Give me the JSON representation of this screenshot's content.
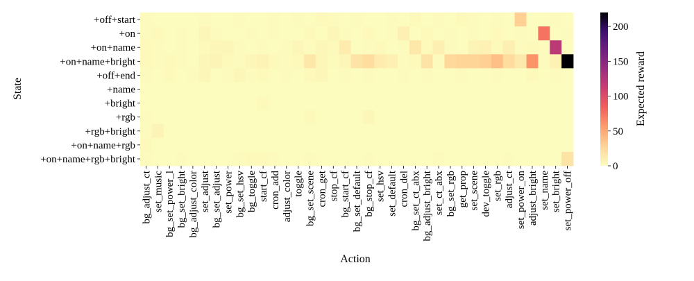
{
  "chart_data": {
    "type": "heatmap",
    "title": "",
    "xlabel": "Action",
    "ylabel": "State",
    "colorbar_label": "Expected reward",
    "colormap": "magma_r",
    "vmin": 0,
    "vmax": 220,
    "colorbar_ticks": [
      0,
      50,
      100,
      150,
      200
    ],
    "rows": [
      "+off+start",
      "+on",
      "+on+name",
      "+on+name+bright",
      "+off+end",
      "+name",
      "+bright",
      "+rgb",
      "+rgb+bright",
      "+on+name+rgb",
      "+on+name+rgb+bright"
    ],
    "columns": [
      "bg_adjust_ct",
      "set_music",
      "bg_set_power_l",
      "bg_set_bright",
      "bg_adjust_color",
      "set_adjust",
      "bg_set_adjust",
      "set_power",
      "bg_set_hsv",
      "bg_toggle",
      "start_cf",
      "cron_add",
      "adjust_color",
      "toggle",
      "bg_set_scene",
      "cron_get",
      "stop_cf",
      "bg_start_cf",
      "bg_set_default",
      "bg_stop_cf",
      "set_hsv",
      "set_default",
      "cron_del",
      "bg_set_ct_abx",
      "bg_adjust_bright",
      "set_ct_abx",
      "bg_set_rgb",
      "get_prop",
      "set_scene",
      "dev_toggle",
      "set_rgb",
      "adjust_ct",
      "set_power_on",
      "adjust_bright",
      "set_name",
      "set_bright",
      "set_power_off"
    ],
    "values": [
      [
        2,
        1,
        1,
        1,
        1,
        2,
        1,
        1,
        2,
        1,
        1,
        2,
        1,
        2,
        1,
        3,
        2,
        1,
        2,
        1,
        1,
        2,
        1,
        3,
        1,
        2,
        1,
        3,
        2,
        1,
        2,
        1,
        30,
        1,
        1,
        2,
        1
      ],
      [
        2,
        3,
        1,
        2,
        1,
        4,
        2,
        1,
        1,
        2,
        1,
        2,
        1,
        1,
        3,
        1,
        5,
        2,
        1,
        3,
        1,
        2,
        9,
        1,
        3,
        1,
        2,
        1,
        2,
        1,
        3,
        1,
        2,
        1,
        75,
        1,
        2
      ],
      [
        3,
        2,
        1,
        2,
        1,
        3,
        5,
        4,
        2,
        1,
        2,
        1,
        2,
        4,
        2,
        5,
        3,
        12,
        1,
        2,
        3,
        1,
        2,
        15,
        3,
        10,
        2,
        1,
        6,
        8,
        3,
        10,
        2,
        3,
        2,
        120,
        1
      ],
      [
        3,
        2,
        3,
        2,
        1,
        5,
        6,
        3,
        2,
        5,
        7,
        3,
        2,
        3,
        15,
        4,
        2,
        4,
        18,
        22,
        12,
        9,
        2,
        3,
        18,
        2,
        25,
        28,
        28,
        30,
        38,
        22,
        14,
        60,
        2,
        8,
        220
      ],
      [
        2,
        1,
        3,
        1,
        2,
        5,
        1,
        2,
        4,
        2,
        3,
        1,
        2,
        1,
        3,
        4,
        1,
        2,
        1,
        2,
        1,
        1,
        2,
        1,
        2,
        1,
        1,
        2,
        1,
        1,
        2,
        1,
        1,
        3,
        1,
        2,
        1
      ],
      [
        1,
        1,
        1,
        1,
        1,
        1,
        1,
        1,
        1,
        1,
        1,
        1,
        1,
        1,
        1,
        1,
        1,
        1,
        1,
        1,
        1,
        1,
        1,
        1,
        1,
        1,
        1,
        1,
        1,
        1,
        1,
        1,
        1,
        1,
        1,
        1,
        1
      ],
      [
        1,
        1,
        1,
        1,
        1,
        1,
        1,
        1,
        1,
        1,
        3,
        1,
        1,
        1,
        1,
        1,
        1,
        1,
        1,
        1,
        1,
        1,
        1,
        1,
        1,
        1,
        1,
        1,
        1,
        1,
        1,
        1,
        1,
        1,
        1,
        1,
        1
      ],
      [
        2,
        1,
        1,
        1,
        1,
        1,
        1,
        1,
        1,
        1,
        1,
        1,
        1,
        1,
        3,
        1,
        1,
        1,
        1,
        4,
        1,
        1,
        1,
        1,
        1,
        1,
        1,
        1,
        1,
        1,
        1,
        1,
        1,
        1,
        1,
        1,
        1
      ],
      [
        2,
        6,
        1,
        1,
        1,
        1,
        1,
        1,
        1,
        1,
        1,
        1,
        1,
        1,
        1,
        1,
        1,
        1,
        1,
        1,
        1,
        1,
        1,
        1,
        1,
        1,
        1,
        1,
        1,
        1,
        1,
        1,
        1,
        1,
        1,
        1,
        1
      ],
      [
        3,
        1,
        1,
        1,
        1,
        1,
        1,
        1,
        1,
        1,
        1,
        1,
        1,
        1,
        1,
        1,
        1,
        1,
        1,
        1,
        1,
        1,
        1,
        1,
        1,
        1,
        1,
        1,
        1,
        1,
        1,
        1,
        1,
        1,
        1,
        1,
        1
      ],
      [
        2,
        1,
        1,
        2,
        1,
        1,
        1,
        1,
        2,
        3,
        3,
        2,
        1,
        1,
        2,
        1,
        1,
        1,
        1,
        2,
        1,
        1,
        1,
        1,
        1,
        2,
        1,
        1,
        1,
        1,
        1,
        2,
        1,
        1,
        1,
        1,
        18
      ]
    ]
  }
}
